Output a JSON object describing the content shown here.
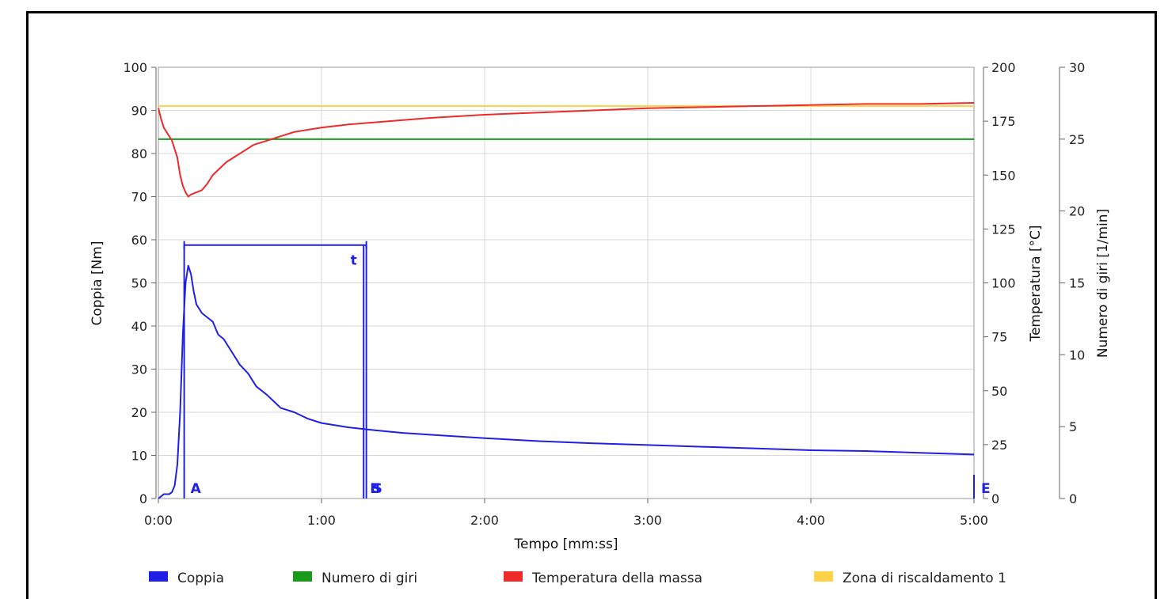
{
  "chart_data": {
    "type": "line",
    "xlabel": "Tempo [mm:ss]",
    "x_ticks": [
      "0:00",
      "1:00",
      "2:00",
      "3:00",
      "4:00",
      "5:00"
    ],
    "xlim_seconds": [
      0,
      300
    ],
    "left_axis": {
      "label": "Coppia [Nm]",
      "ylim": [
        0,
        100
      ],
      "ticks": [
        "0",
        "10",
        "20",
        "30",
        "40",
        "50",
        "60",
        "70",
        "80",
        "90",
        "100"
      ]
    },
    "right_axis_temperature": {
      "label": "Temperatura [°C]",
      "ylim": [
        0,
        200
      ],
      "ticks": [
        "0",
        "25",
        "50",
        "75",
        "100",
        "125",
        "150",
        "175",
        "200"
      ]
    },
    "right_axis_speed": {
      "label": "Numero di giri [1/min]",
      "ylim": [
        0,
        30
      ],
      "ticks": [
        "0",
        "5",
        "10",
        "15",
        "20",
        "25",
        "30"
      ]
    },
    "grid": true,
    "legend_position": "bottom",
    "series": [
      {
        "name": "Coppia",
        "color": "#1f1fe6",
        "axis": "left",
        "x": [
          0,
          2,
          4,
          5,
          6,
          7,
          8,
          9,
          10,
          11,
          12,
          13,
          14,
          15,
          16,
          18,
          20,
          22,
          24,
          26,
          28,
          30,
          33,
          36,
          40,
          45,
          50,
          55,
          60,
          70,
          80,
          90,
          100,
          120,
          140,
          160,
          180,
          200,
          220,
          240,
          260,
          280,
          300
        ],
        "y": [
          0,
          1,
          1,
          1.5,
          3,
          8,
          20,
          38,
          50,
          54,
          52,
          48,
          45,
          44,
          43,
          42,
          41,
          38,
          37,
          35,
          33,
          31,
          29,
          26,
          24,
          21,
          20,
          18.5,
          17.5,
          16.5,
          15.8,
          15.2,
          14.8,
          14,
          13.3,
          12.8,
          12.4,
          12,
          11.6,
          11.2,
          11,
          10.6,
          10.2
        ]
      },
      {
        "name": "Numero di giri",
        "color": "#1a9a1a",
        "axis": "speed",
        "x": [
          0,
          300
        ],
        "y": [
          25,
          25
        ]
      },
      {
        "name": "Temperatura della massa",
        "color": "#ee2a2a",
        "axis": "temperature",
        "x": [
          0,
          1,
          2,
          3,
          4,
          5,
          6,
          7,
          8,
          9,
          10,
          11,
          12,
          14,
          16,
          18,
          20,
          25,
          30,
          35,
          40,
          45,
          50,
          60,
          70,
          80,
          90,
          100,
          120,
          140,
          160,
          180,
          200,
          220,
          240,
          260,
          280,
          300
        ],
        "y": [
          181,
          176,
          172,
          170,
          168,
          166,
          162,
          158,
          150,
          145,
          142,
          140,
          141,
          142,
          143,
          146,
          150,
          156,
          160,
          164,
          166,
          168,
          170,
          172,
          173.5,
          174.5,
          175.5,
          176.5,
          178,
          179,
          180,
          181,
          181.5,
          182,
          182.5,
          183,
          183,
          183.5
        ]
      },
      {
        "name": "Zona di riscaldamento 1",
        "color": "#ffd24a",
        "axis": "temperature",
        "x": [
          0,
          300
        ],
        "y": [
          182,
          182
        ]
      }
    ],
    "markers": [
      {
        "label": "A",
        "x": 9.5,
        "color": "#1f1fe6"
      },
      {
        "label": "B",
        "x": 75.5,
        "color": "#1f1fe6"
      },
      {
        "label": "S",
        "x": 76.5,
        "color": "#1f1fe6"
      },
      {
        "label": "E",
        "x": 300,
        "color": "#1f1fe6"
      }
    ],
    "interval": {
      "label": "t",
      "x_start": 9.5,
      "x_end": 76.5,
      "y": 54,
      "color": "#1f1fe6"
    },
    "legend": [
      {
        "name": "Coppia",
        "color": "#1f1fe6"
      },
      {
        "name": "Numero di giri",
        "color": "#1a9a1a"
      },
      {
        "name": "Temperatura della massa",
        "color": "#ee2a2a"
      },
      {
        "name": "Zona di riscaldamento 1",
        "color": "#ffd24a"
      }
    ]
  }
}
